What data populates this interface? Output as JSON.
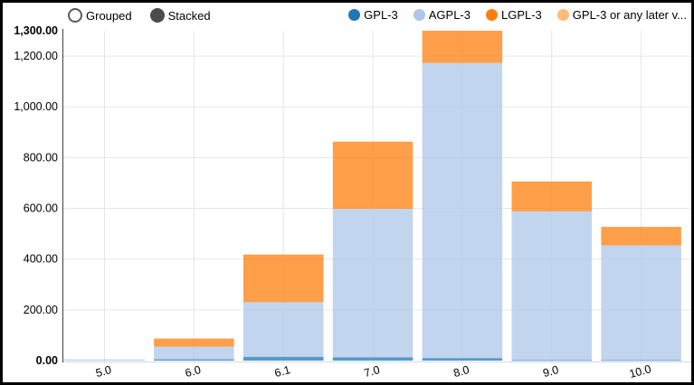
{
  "controls": {
    "grouped": {
      "label": "Grouped",
      "selected": false
    },
    "stacked": {
      "label": "Stacked",
      "selected": true
    }
  },
  "legend": {
    "items": [
      {
        "label": "GPL-3",
        "color": "#1f77b4"
      },
      {
        "label": "AGPL-3",
        "color": "#aec7e8"
      },
      {
        "label": "LGPL-3",
        "color": "#ff7f0e"
      },
      {
        "label": "GPL-3 or any later v...",
        "color": "#ffbb78"
      }
    ]
  },
  "chart_data": {
    "type": "bar",
    "stacked": true,
    "categories": [
      "5.0",
      "6.0",
      "6.1",
      "7.0",
      "8.0",
      "9.0",
      "10.0"
    ],
    "series": [
      {
        "name": "GPL-3",
        "color": "#1f77b4",
        "values": [
          0,
          5,
          15,
          13,
          10,
          2,
          2
        ]
      },
      {
        "name": "AGPL-3",
        "color": "#aec7e8",
        "values": [
          5,
          50,
          215,
          585,
          1163,
          586,
          452
        ]
      },
      {
        "name": "LGPL-3",
        "color": "#ff7f0e",
        "values": [
          0,
          32,
          188,
          265,
          127,
          118,
          73
        ]
      },
      {
        "name": "GPL-3 or any later v...",
        "color": "#ffbb78",
        "values": [
          0,
          0,
          0,
          0,
          0,
          0,
          0
        ]
      }
    ],
    "stack_totals": [
      5,
      87,
      418,
      863,
      1300,
      706,
      527
    ],
    "ylim": [
      0,
      1300
    ],
    "yticks": [
      0,
      200,
      400,
      600,
      800,
      1000,
      1200,
      1300
    ],
    "ytick_labels": [
      "0.00",
      "200.00",
      "400.00",
      "600.00",
      "800.00",
      "1,000.00",
      "1,200.00",
      "1,300.00"
    ],
    "ytick_bold": [
      true,
      false,
      false,
      false,
      false,
      false,
      false,
      true
    ],
    "grid": true,
    "legend_position": "top-right",
    "bar_fill_opacity": 0.75
  }
}
